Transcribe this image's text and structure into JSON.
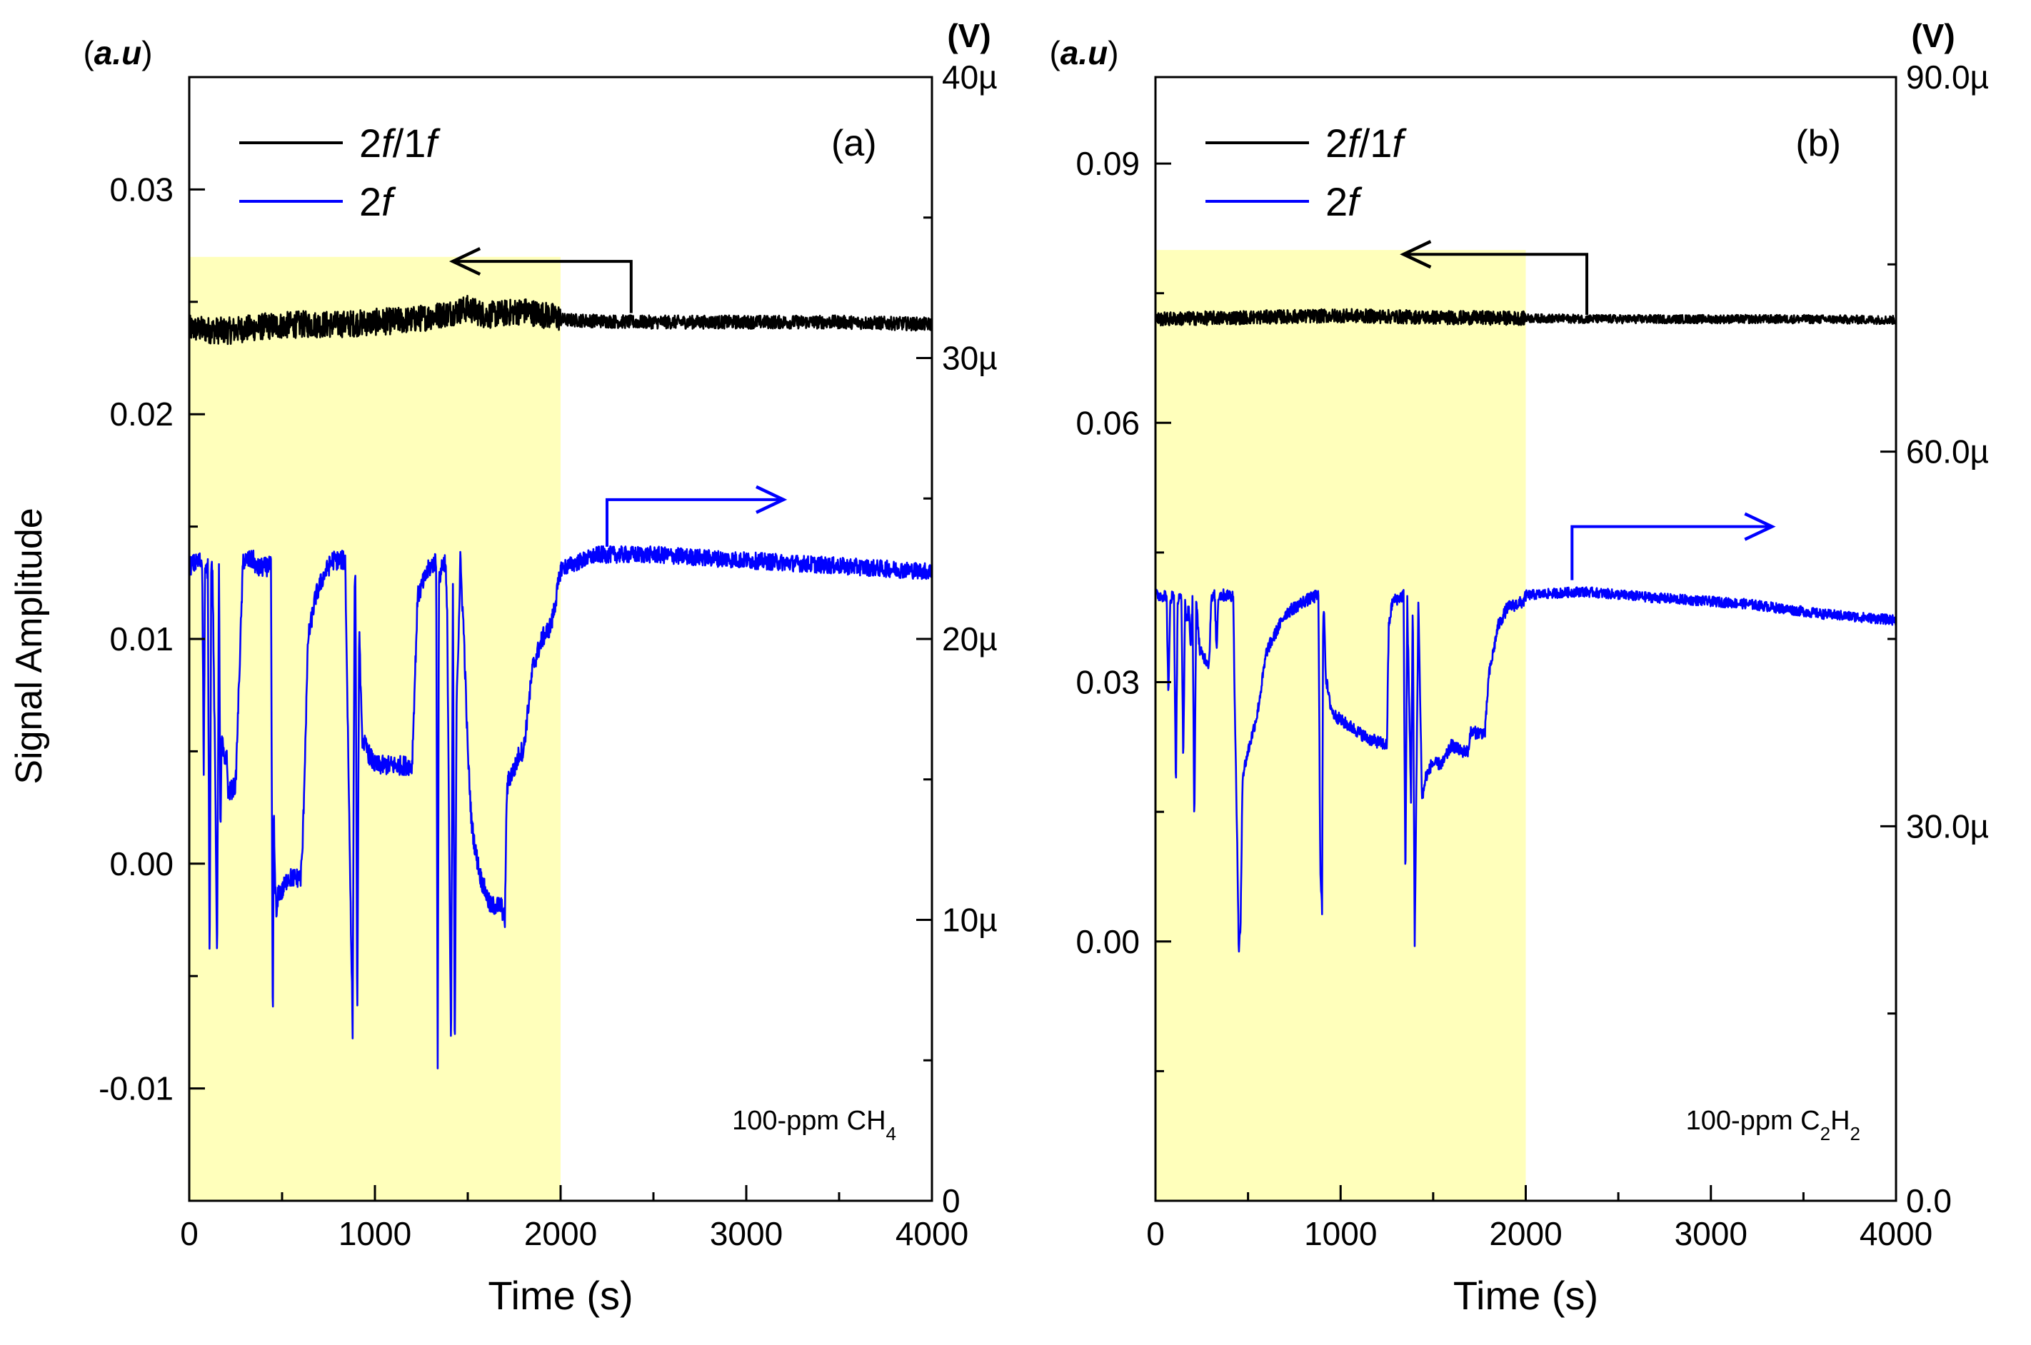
{
  "figure": {
    "ylabel": "Signal Amplitude"
  },
  "chart_data": [
    {
      "type": "line",
      "panel_label": "(a)",
      "xlabel": "Time (s)",
      "xlim": [
        0,
        4000
      ],
      "x_ticks": [
        0,
        1000,
        2000,
        3000,
        4000
      ],
      "left_axis_unit": "(a.u)",
      "left_ylim": [
        -0.015,
        0.035
      ],
      "left_ticks": [
        -0.01,
        0.0,
        0.01,
        0.02,
        0.03
      ],
      "left_tick_labels": [
        "-0.01",
        "0.00",
        "0.01",
        "0.02",
        "0.03"
      ],
      "right_axis_unit": "(V)",
      "right_ylim": [
        0,
        40
      ],
      "right_ticks": [
        0,
        10,
        20,
        30,
        40
      ],
      "right_tick_labels": [
        "0",
        "10µ",
        "20µ",
        "30µ",
        "40µ"
      ],
      "shaded_region": {
        "x": [
          0,
          2000
        ],
        "y_top": 0.027,
        "color": "#ffffbb"
      },
      "annotation": {
        "prefix": "100-ppm CH",
        "sub": "4"
      },
      "legend": [
        {
          "label_main": "2",
          "label_italic": "f",
          "label_rest": "/1",
          "label_italic2": "f",
          "color": "#000000"
        },
        {
          "label_main": "2",
          "label_italic": "f",
          "label_rest": "",
          "label_italic2": "",
          "color": "#0000ff"
        }
      ],
      "arrows": {
        "left": {
          "from": [
            2380,
            0.0245
          ],
          "corner": [
            2380,
            0.0268
          ],
          "to": [
            1420,
            0.0268
          ],
          "color": "#000000"
        },
        "right": {
          "from": [
            2250,
            0.0141
          ],
          "corner": [
            2250,
            0.0162
          ],
          "to": [
            3200,
            0.0162
          ],
          "color": "#0000ff"
        }
      },
      "series": [
        {
          "name": "2f/1f",
          "axis": "left",
          "color": "#000000",
          "noise": 0.0006,
          "noise_after": 0.0003,
          "x": [
            0,
            200,
            400,
            600,
            800,
            1000,
            1200,
            1400,
            1500,
            1600,
            1800,
            1990,
            2000,
            2400,
            3000,
            3500,
            4000
          ],
          "y": [
            0.0238,
            0.0237,
            0.0239,
            0.024,
            0.024,
            0.0241,
            0.0242,
            0.0245,
            0.0247,
            0.0244,
            0.0246,
            0.0243,
            0.0242,
            0.0241,
            0.0241,
            0.0241,
            0.024
          ]
        },
        {
          "name": "2f",
          "axis": "right",
          "color": "#0000ff",
          "noise": 0.35,
          "noise_after": 0.3,
          "x": [
            0,
            70,
            78,
            85,
            100,
            110,
            118,
            125,
            140,
            150,
            160,
            168,
            175,
            190,
            200,
            210,
            250,
            290,
            330,
            350,
            360,
            440,
            450,
            455,
            460,
            470,
            480,
            500,
            530,
            600,
            610,
            640,
            680,
            720,
            770,
            840,
            880,
            890,
            895,
            905,
            915,
            930,
            960,
            1000,
            1050,
            1100,
            1200,
            1230,
            1260,
            1290,
            1330,
            1338,
            1345,
            1360,
            1380,
            1390,
            1410,
            1420,
            1430,
            1440,
            1450,
            1460,
            1480,
            1500,
            1520,
            1540,
            1570,
            1620,
            1680,
            1700,
            1710,
            1720,
            1760,
            1780,
            1800,
            1850,
            1900,
            1950,
            1990,
            2000,
            2200,
            2500,
            3000,
            3500,
            4000
          ],
          "y": [
            22.6,
            22.8,
            15.0,
            22.4,
            22.5,
            8.0,
            22.5,
            22.6,
            15.0,
            8.5,
            22.5,
            13.0,
            16.5,
            15.5,
            16.0,
            14.5,
            14.8,
            22.8,
            22.8,
            22.8,
            22.5,
            22.6,
            5.5,
            14.0,
            12.0,
            10.0,
            11.0,
            11.0,
            11.5,
            11.5,
            12.5,
            20.0,
            21.5,
            22.2,
            22.8,
            22.8,
            6.0,
            21.5,
            22.5,
            6.0,
            20.5,
            16.5,
            16.0,
            15.5,
            15.5,
            15.5,
            15.5,
            21.5,
            22.0,
            22.5,
            22.8,
            4.5,
            22.0,
            22.6,
            22.8,
            20.5,
            5.0,
            22.0,
            4.5,
            18.0,
            20.0,
            22.8,
            20.0,
            16.0,
            13.5,
            12.5,
            11.5,
            10.5,
            10.5,
            10.0,
            14.5,
            15.0,
            15.5,
            16.0,
            16.0,
            19.0,
            20.0,
            20.5,
            22.0,
            22.5,
            23.0,
            23.0,
            22.8,
            22.6,
            22.4
          ]
        }
      ]
    },
    {
      "type": "line",
      "panel_label": "(b)",
      "xlabel": "Time (s)",
      "xlim": [
        0,
        4000
      ],
      "x_ticks": [
        0,
        1000,
        2000,
        3000,
        4000
      ],
      "left_axis_unit": "(a.u)",
      "left_ylim": [
        -0.03,
        0.1
      ],
      "left_ticks": [
        0.0,
        0.03,
        0.06,
        0.09
      ],
      "left_tick_labels": [
        "0.00",
        "0.03",
        "0.06",
        "0.09"
      ],
      "right_axis_unit": "(V)",
      "right_ylim": [
        0,
        90
      ],
      "right_ticks": [
        0,
        30,
        60,
        90
      ],
      "right_tick_labels": [
        "0.0",
        "30.0µ",
        "60.0µ",
        "90.0µ"
      ],
      "shaded_region": {
        "x": [
          0,
          2000
        ],
        "y_top": 0.08,
        "color": "#ffffbb"
      },
      "annotation": {
        "prefix": "100-ppm C",
        "sub": "2",
        "mid": "H",
        "sub2": "2"
      },
      "legend": [
        {
          "label_main": "2",
          "label_italic": "f",
          "label_rest": "/1",
          "label_italic2": "f",
          "color": "#000000"
        },
        {
          "label_main": "2",
          "label_italic": "f",
          "label_rest": "",
          "label_italic2": "",
          "color": "#0000ff"
        }
      ],
      "arrows": {
        "left": {
          "from": [
            2330,
            0.0725
          ],
          "corner": [
            2330,
            0.0795
          ],
          "to": [
            1340,
            0.0795
          ],
          "color": "#000000"
        },
        "right": {
          "from": [
            2250,
            0.0418
          ],
          "corner": [
            2250,
            0.048
          ],
          "to": [
            3330,
            0.048
          ],
          "color": "#0000ff"
        }
      },
      "series": [
        {
          "name": "2f/1f",
          "axis": "left",
          "color": "#000000",
          "noise": 0.0008,
          "noise_after": 0.0005,
          "x": [
            0,
            500,
            1000,
            1500,
            2000,
            2500,
            3000,
            3500,
            4000
          ],
          "y": [
            0.072,
            0.0722,
            0.0724,
            0.0722,
            0.0721,
            0.072,
            0.072,
            0.072,
            0.0719
          ]
        },
        {
          "name": "2f",
          "axis": "right",
          "color": "#0000ff",
          "noise": 0.5,
          "noise_after": 0.4,
          "x": [
            0,
            60,
            70,
            80,
            100,
            110,
            120,
            140,
            150,
            160,
            170,
            180,
            190,
            200,
            210,
            220,
            240,
            290,
            300,
            320,
            330,
            340,
            420,
            430,
            440,
            450,
            460,
            470,
            500,
            550,
            600,
            700,
            800,
            880,
            890,
            900,
            905,
            910,
            920,
            940,
            960,
            1000,
            1050,
            1150,
            1250,
            1260,
            1280,
            1340,
            1350,
            1360,
            1380,
            1390,
            1400,
            1420,
            1440,
            1460,
            1480,
            1490,
            1500,
            1520,
            1550,
            1600,
            1650,
            1690,
            1700,
            1720,
            1780,
            1800,
            1850,
            1900,
            1990,
            2000,
            2300,
            2700,
            3200,
            3600,
            4000
          ],
          "y": [
            48.5,
            48.5,
            40.0,
            48.3,
            48.5,
            33.0,
            48.0,
            48.5,
            35.0,
            48.0,
            46.0,
            48.0,
            44.0,
            48.0,
            30.0,
            48.0,
            44.0,
            43.0,
            48.0,
            48.5,
            44.0,
            48.5,
            48.5,
            38.0,
            30.0,
            20.0,
            22.0,
            34.0,
            36.0,
            39.0,
            44.0,
            47.0,
            48.0,
            48.5,
            27.0,
            23.0,
            45.0,
            48.0,
            42.0,
            40.0,
            39.0,
            38.5,
            38.0,
            37.0,
            36.5,
            46.0,
            48.0,
            48.5,
            25.0,
            48.0,
            32.0,
            48.5,
            20.0,
            48.0,
            32.0,
            34.0,
            34.5,
            35.0,
            35.0,
            35.0,
            35.0,
            36.5,
            36.0,
            36.0,
            37.5,
            37.5,
            37.5,
            42.0,
            46.0,
            47.5,
            48.0,
            48.5,
            48.8,
            48.3,
            47.8,
            47.0,
            46.5
          ]
        }
      ]
    }
  ]
}
